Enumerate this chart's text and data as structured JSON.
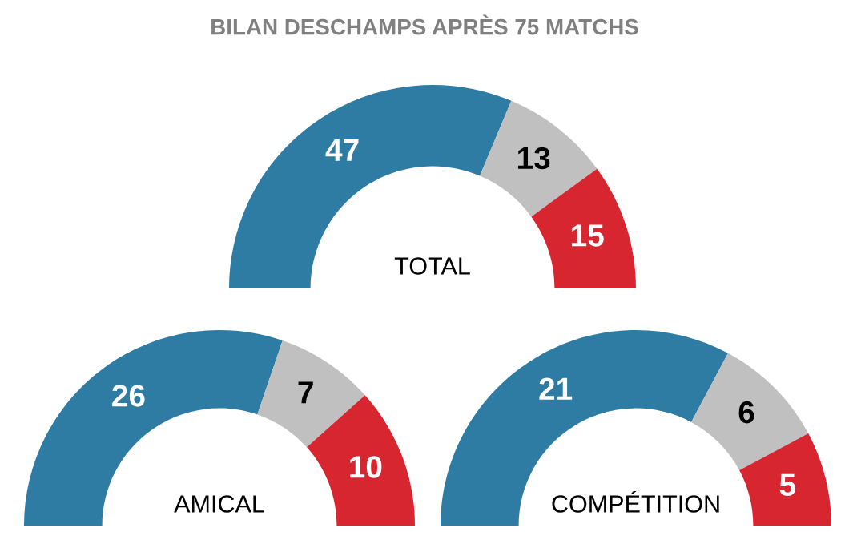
{
  "chart_data": [
    {
      "type": "donut",
      "annotations": [
        "AMICAL"
      ],
      "categories": [
        null,
        null,
        null
      ],
      "values": [
        26,
        7,
        10
      ],
      "colors": [
        "#2e7ca3",
        "#c0c0c0",
        "#d7262f"
      ],
      "data_labels": true
    },
    {
      "type": "donut",
      "title": "BILAN DESCHAMPS APRÈS 75 MATCHS",
      "annotations": [
        "TOTAL"
      ],
      "categories": [
        null,
        null,
        null
      ],
      "values": [
        47,
        13,
        15
      ],
      "colors": [
        "#2e7ca3",
        "#c0c0c0",
        "#d7262f"
      ],
      "data_labels": true
    },
    {
      "type": "donut",
      "annotations": [
        "COMPÉTITION"
      ],
      "categories": [
        null,
        null,
        null
      ],
      "values": [
        21,
        6,
        5
      ],
      "colors": [
        "#2e7ca3",
        "#c0c0c0",
        "#d7262f"
      ],
      "data_labels": true
    }
  ]
}
